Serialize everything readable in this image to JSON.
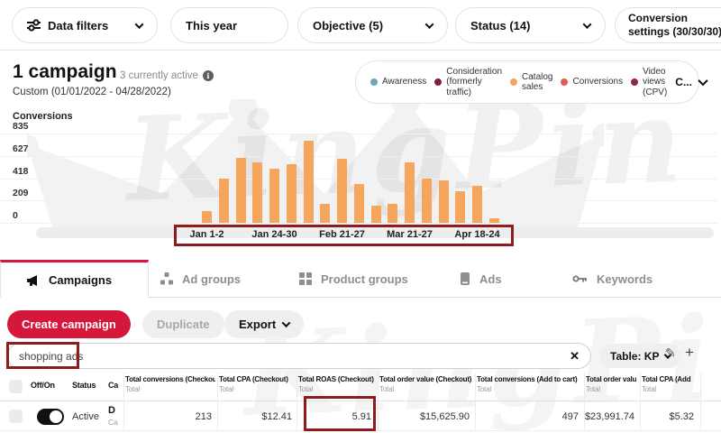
{
  "filters": {
    "data_filters": "Data filters",
    "this_year": "This year",
    "objective": "Objective (5)",
    "status": "Status (14)",
    "conversion_settings": "Conversion settings (30/30/30)"
  },
  "header": {
    "title": "1 campaign",
    "active_note": "3 currently active",
    "date_range": "Custom (01/01/2022 - 04/28/2022)"
  },
  "legend": {
    "items": [
      {
        "label": "Awareness",
        "color": "#6fa5b4"
      },
      {
        "label": "Consideration (formerly traffic)",
        "color": "#7d1f45"
      },
      {
        "label": "Catalog sales",
        "color": "#f5a45c"
      },
      {
        "label": "Conversions",
        "color": "#e05d52"
      },
      {
        "label": "Video views (CPV)",
        "color": "#8e2a3f"
      }
    ],
    "more_label": "C..."
  },
  "chart_data": {
    "type": "bar",
    "ylabel": "Conversions",
    "yticks": [
      0,
      209,
      418,
      627,
      835
    ],
    "ylim": [
      0,
      835
    ],
    "grid": true,
    "bar_color": "#f5a55c",
    "values": [
      110,
      415,
      610,
      570,
      505,
      550,
      770,
      180,
      600,
      365,
      160,
      175,
      570,
      415,
      400,
      295,
      350,
      40
    ],
    "x_tick_labels": [
      "Jan 1-2",
      "Jan 24-30",
      "Feb 21-27",
      "Mar 21-27",
      "Apr 18-24"
    ],
    "x_tick_indices": [
      0,
      4,
      8,
      12,
      16
    ]
  },
  "tabs": [
    {
      "label": "Campaigns",
      "icon": "megaphone-icon",
      "active": true
    },
    {
      "label": "Ad groups",
      "icon": "ad-groups-icon",
      "active": false
    },
    {
      "label": "Product groups",
      "icon": "product-groups-icon",
      "active": false
    },
    {
      "label": "Ads",
      "icon": "ads-icon",
      "active": false
    },
    {
      "label": "Keywords",
      "icon": "key-icon",
      "active": false
    }
  ],
  "actions": {
    "create": "Create campaign",
    "duplicate": "Duplicate",
    "export": "Export"
  },
  "search": {
    "value": "shopping ads",
    "clear_glyph": "✕"
  },
  "table_menu": {
    "label": "Table: KP",
    "pencil_glyph": "✎",
    "plus_glyph": "+"
  },
  "table": {
    "columns": [
      {
        "header": "",
        "sub": ""
      },
      {
        "header": "Off/On",
        "sub": ""
      },
      {
        "header": "Status",
        "sub": ""
      },
      {
        "header": "Ca",
        "sub": ""
      },
      {
        "header": "Total conversions (Checkout)",
        "sub": "Total"
      },
      {
        "header": "Total CPA (Checkout)",
        "sub": "Total"
      },
      {
        "header": "Total ROAS (Checkout)",
        "sub": "Total"
      },
      {
        "header": "Total order value (Checkout)",
        "sub": "Total"
      },
      {
        "header": "Total conversions (Add to cart)",
        "sub": "Total"
      },
      {
        "header": "Total order valu",
        "sub": "Total"
      },
      {
        "header": "Total CPA (Add",
        "sub": "Total"
      }
    ],
    "row": {
      "toggle_on": true,
      "status": "Active",
      "name": "D",
      "name_sub": "Ca",
      "values": [
        "213",
        "$12.41",
        "5.91",
        "$15,625.90",
        "497",
        "$23,991.74",
        "$5.32"
      ]
    }
  },
  "watermark": {
    "text": "KingPin"
  }
}
